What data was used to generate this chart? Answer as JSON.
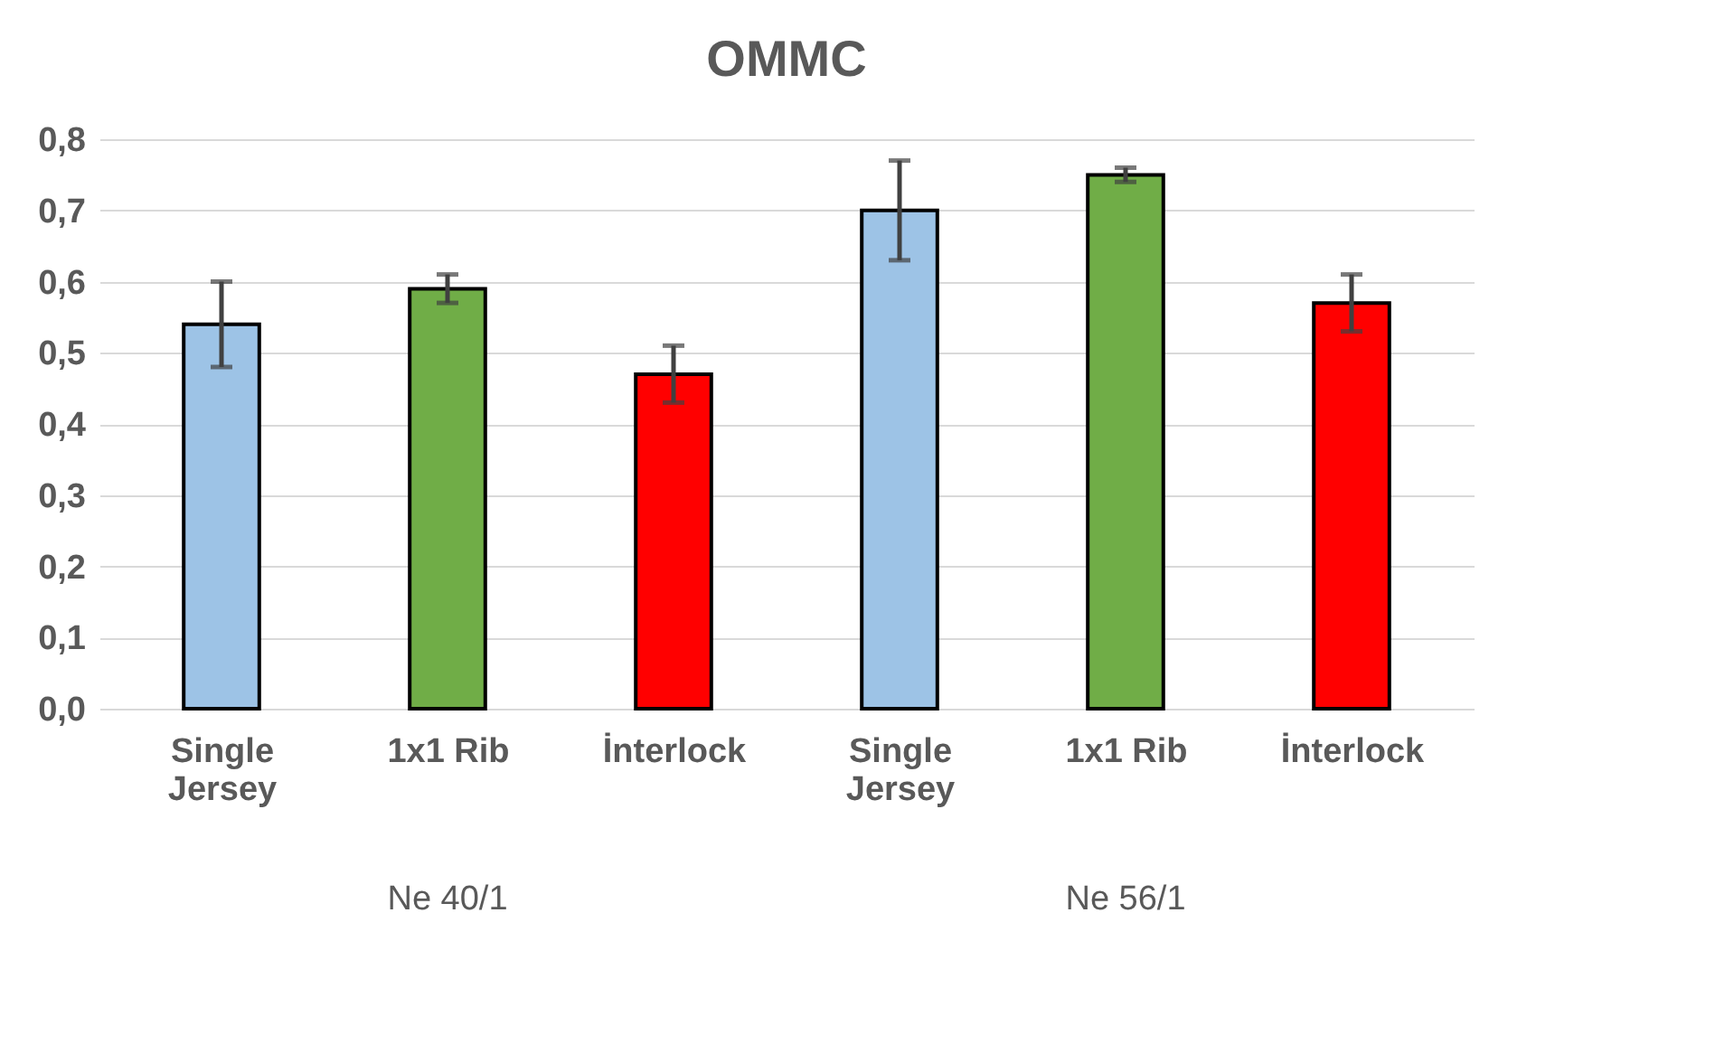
{
  "chart_data": {
    "type": "bar",
    "title": "OMMC",
    "categories": [
      "Single Jersey",
      "1x1 Rib",
      "İnterlock",
      "Single Jersey",
      "1x1 Rib",
      "İnterlock"
    ],
    "values": [
      0.54,
      0.59,
      0.47,
      0.7,
      0.75,
      0.57
    ],
    "errors": [
      0.06,
      0.02,
      0.04,
      0.07,
      0.01,
      0.04
    ],
    "colors": [
      "#9dc3e6",
      "#70ad47",
      "#ff0000",
      "#9dc3e6",
      "#70ad47",
      "#ff0000"
    ],
    "ylim": [
      0,
      0.8
    ],
    "yticks": [
      {
        "value": 0,
        "label": "0,0"
      },
      {
        "value": 0.1,
        "label": "0,1"
      },
      {
        "value": 0.2,
        "label": "0,2"
      },
      {
        "value": 0.3,
        "label": "0,3"
      },
      {
        "value": 0.4,
        "label": "0,4"
      },
      {
        "value": 0.5,
        "label": "0,5"
      },
      {
        "value": 0.6,
        "label": "0,6"
      },
      {
        "value": 0.7,
        "label": "0,7"
      },
      {
        "value": 0.8,
        "label": "0,8"
      }
    ],
    "annotations": [
      "Ne 40/1",
      "Ne 56/1"
    ],
    "grid": "y"
  }
}
